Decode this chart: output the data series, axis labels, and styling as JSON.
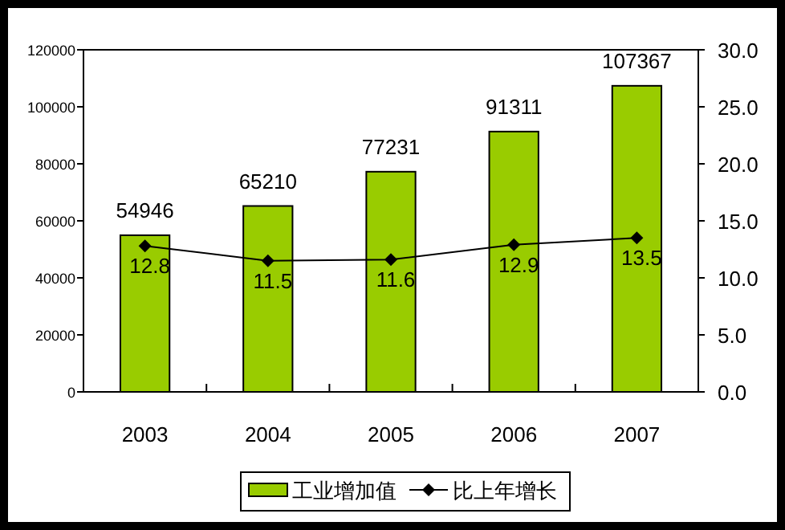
{
  "chart_data": {
    "type": "bar",
    "categories": [
      "2003",
      "2004",
      "2005",
      "2006",
      "2007"
    ],
    "series": [
      {
        "name": "工业增加值",
        "color": "#99cc00",
        "values": [
          54946,
          65210,
          77231,
          91311,
          107367
        ]
      },
      {
        "name": "比上年增长",
        "type": "line",
        "axis": "y2",
        "color": "#000000",
        "marker": "diamond",
        "values": [
          12.8,
          11.5,
          11.6,
          12.9,
          13.5
        ]
      }
    ],
    "ylim": [
      0,
      120000
    ],
    "yticks": [
      0,
      20000,
      40000,
      60000,
      80000,
      100000,
      120000
    ],
    "y2lim": [
      0,
      30
    ],
    "y2ticks": [
      {
        "value": 0,
        "label": "0.0"
      },
      {
        "value": 5,
        "label": "5.0"
      },
      {
        "value": 10,
        "label": "10.0"
      },
      {
        "value": 15,
        "label": "15.0"
      },
      {
        "value": 20,
        "label": "20.0"
      },
      {
        "value": 25,
        "label": "25.0"
      },
      {
        "value": 30,
        "label": "30.0"
      }
    ],
    "data_labels": true,
    "grid": false,
    "legend": "bottom"
  }
}
